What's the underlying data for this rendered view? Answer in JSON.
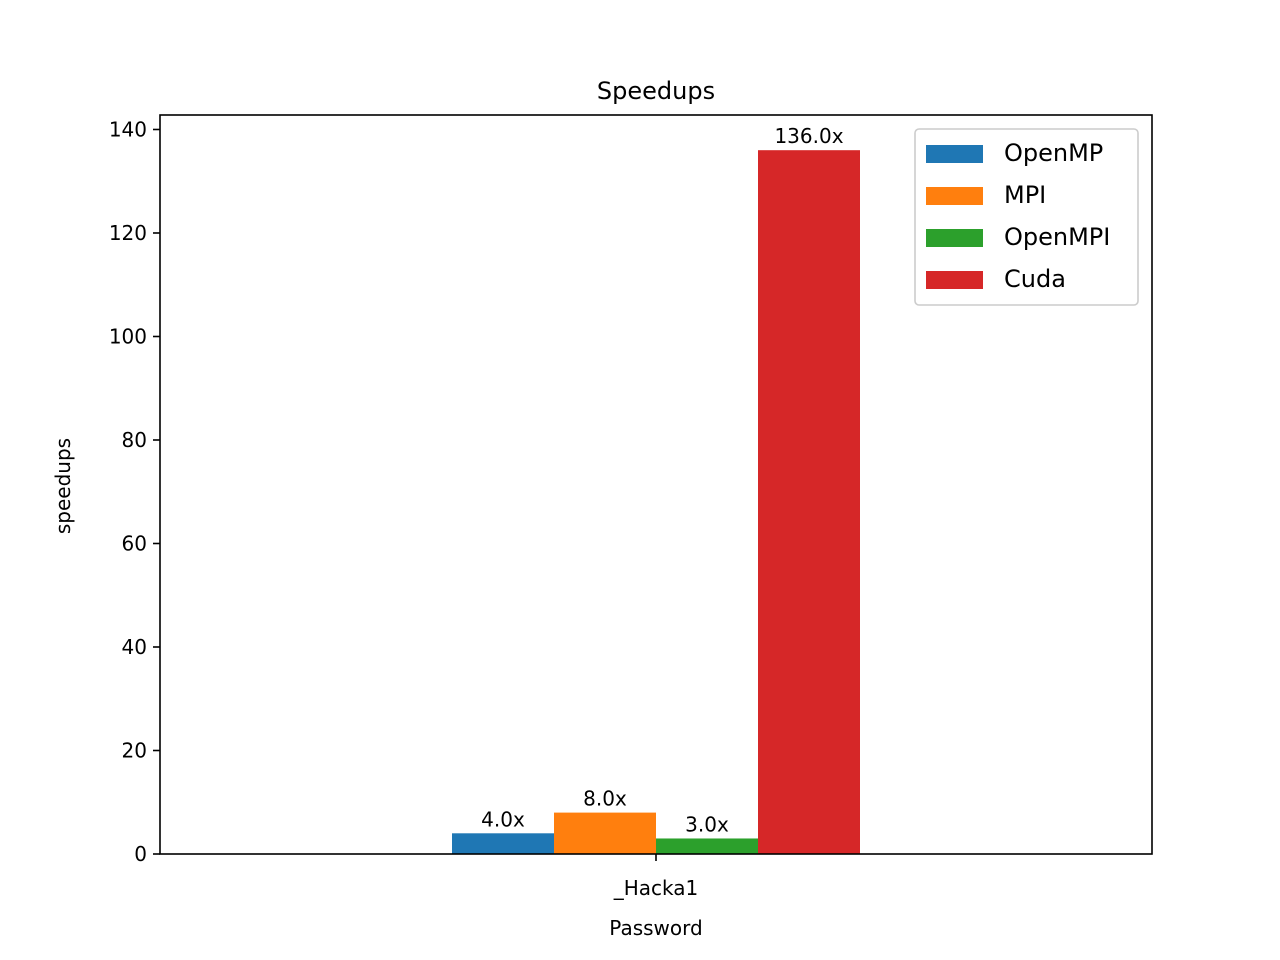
{
  "chart_data": {
    "type": "bar",
    "title": "Speedups",
    "xlabel": "Password",
    "ylabel": "speedups",
    "categories": [
      "_Hacka1"
    ],
    "series": [
      {
        "name": "OpenMP",
        "values": [
          4.0
        ],
        "color": "#1f77b4",
        "label": "4.0x"
      },
      {
        "name": "MPI",
        "values": [
          8.0
        ],
        "color": "#ff7f0e",
        "label": "8.0x"
      },
      {
        "name": "OpenMPI",
        "values": [
          3.0
        ],
        "color": "#2ca02c",
        "label": "3.0x"
      },
      {
        "name": "Cuda",
        "values": [
          136.0
        ],
        "color": "#d62728",
        "label": "136.0x"
      }
    ],
    "ylim": [
      0,
      142.8
    ],
    "yticks": [
      0,
      20,
      40,
      60,
      80,
      100,
      120,
      140
    ],
    "legend_position": "top-right",
    "grid": false
  }
}
